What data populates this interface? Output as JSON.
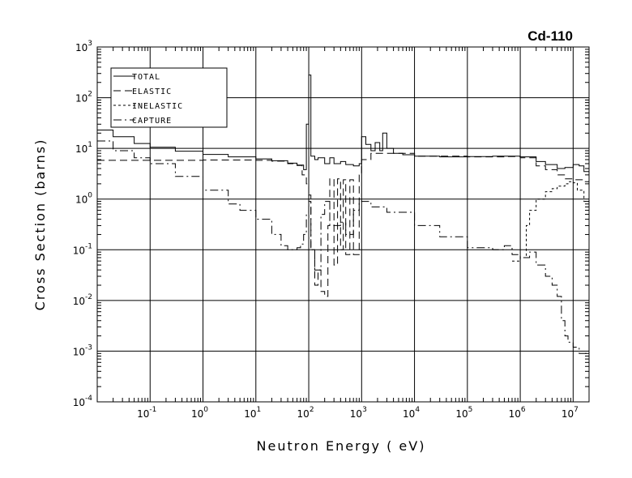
{
  "chart_data": {
    "type": "line",
    "title": "Cd-110",
    "xlabel": "Neutron Energy ( eV)",
    "ylabel": "Cross Section (barns)",
    "xscale": "log",
    "yscale": "log",
    "xlim": [
      0.01,
      20000000
    ],
    "ylim": [
      0.0001,
      1000
    ],
    "grid": true,
    "legend_position": "top-left",
    "x_ticks": [
      {
        "base": "10",
        "exp": "-1",
        "value": 0.1
      },
      {
        "base": "10",
        "exp": "0",
        "value": 1
      },
      {
        "base": "10",
        "exp": "1",
        "value": 10
      },
      {
        "base": "10",
        "exp": "2",
        "value": 100
      },
      {
        "base": "10",
        "exp": "3",
        "value": 1000
      },
      {
        "base": "10",
        "exp": "4",
        "value": 10000
      },
      {
        "base": "10",
        "exp": "5",
        "value": 100000
      },
      {
        "base": "10",
        "exp": "6",
        "value": 1000000
      },
      {
        "base": "10",
        "exp": "7",
        "value": 10000000
      }
    ],
    "y_ticks": [
      {
        "base": "10",
        "exp": "-4",
        "value": 0.0001
      },
      {
        "base": "10",
        "exp": "-3",
        "value": 0.001
      },
      {
        "base": "10",
        "exp": "-2",
        "value": 0.01
      },
      {
        "base": "10",
        "exp": "-1",
        "value": 0.1
      },
      {
        "base": "10",
        "exp": "0",
        "value": 1
      },
      {
        "base": "10",
        "exp": "1",
        "value": 10
      },
      {
        "base": "10",
        "exp": "2",
        "value": 100
      },
      {
        "base": "10",
        "exp": "3",
        "value": 1000
      }
    ],
    "series": [
      {
        "name": "TOTAL",
        "dash": "solid",
        "points": [
          [
            0.01,
            23
          ],
          [
            0.02,
            17
          ],
          [
            0.05,
            12.5
          ],
          [
            0.1,
            10.5
          ],
          [
            0.3,
            8.8
          ],
          [
            1,
            7.6
          ],
          [
            3,
            6.8
          ],
          [
            10,
            6.2
          ],
          [
            20,
            5.7
          ],
          [
            40,
            5.1
          ],
          [
            60,
            4.7
          ],
          [
            80,
            3.8
          ],
          [
            90,
            30
          ],
          [
            100,
            280
          ],
          [
            110,
            7
          ],
          [
            130,
            6
          ],
          [
            150,
            6.5
          ],
          [
            200,
            5
          ],
          [
            250,
            6.5
          ],
          [
            300,
            5
          ],
          [
            400,
            5.5
          ],
          [
            500,
            4.8
          ],
          [
            700,
            4.5
          ],
          [
            900,
            5
          ],
          [
            1000,
            17
          ],
          [
            1200,
            12
          ],
          [
            1500,
            9
          ],
          [
            1800,
            13
          ],
          [
            2200,
            9
          ],
          [
            2500,
            20
          ],
          [
            3000,
            10
          ],
          [
            4000,
            8
          ],
          [
            6000,
            7.5
          ],
          [
            10000,
            7
          ],
          [
            30000,
            6.8
          ],
          [
            100000,
            6.9
          ],
          [
            300000,
            7
          ],
          [
            1000000,
            6.8
          ],
          [
            2000000,
            5.5
          ],
          [
            3000000,
            4.8
          ],
          [
            5000000,
            4
          ],
          [
            7000000,
            4.2
          ],
          [
            10000000,
            4.8
          ],
          [
            13000000,
            4.5
          ],
          [
            16000000,
            3.5
          ],
          [
            20000000,
            2.6
          ]
        ]
      },
      {
        "name": "ELASTIC",
        "dash": "long-dash",
        "points": [
          [
            0.01,
            5.8
          ],
          [
            0.1,
            5.8
          ],
          [
            1,
            5.9
          ],
          [
            5,
            5.9
          ],
          [
            10,
            5.8
          ],
          [
            20,
            5.6
          ],
          [
            40,
            5
          ],
          [
            60,
            4.6
          ],
          [
            75,
            3
          ],
          [
            90,
            2
          ],
          [
            100,
            0.9
          ],
          [
            110,
            0.1
          ],
          [
            130,
            0.02
          ],
          [
            150,
            0.04
          ],
          [
            170,
            0.015
          ],
          [
            180,
            0.015
          ],
          [
            200,
            0.012
          ],
          [
            230,
            0.3
          ],
          [
            250,
            2.5
          ],
          [
            270,
            2.5
          ],
          [
            300,
            0.05
          ],
          [
            350,
            2.5
          ],
          [
            400,
            0.1
          ],
          [
            450,
            2.4
          ],
          [
            500,
            0.08
          ],
          [
            550,
            0.08
          ],
          [
            600,
            2.4
          ],
          [
            700,
            0.08
          ],
          [
            800,
            0.08
          ],
          [
            900,
            3
          ],
          [
            1000,
            6
          ],
          [
            1200,
            6
          ],
          [
            1500,
            8
          ],
          [
            2000,
            8
          ],
          [
            3000,
            8
          ],
          [
            10000,
            7
          ],
          [
            100000,
            6.8
          ],
          [
            500000,
            6.9
          ],
          [
            1000000,
            6.5
          ],
          [
            2000000,
            4.5
          ],
          [
            3000000,
            3.8
          ],
          [
            5000000,
            3
          ],
          [
            7000000,
            2.5
          ],
          [
            10000000,
            2.4
          ],
          [
            13000000,
            2.4
          ],
          [
            16000000,
            2.2
          ],
          [
            20000000,
            1.8
          ]
        ]
      },
      {
        "name": "INELASTIC",
        "dash": "short-dash",
        "points": [
          [
            700000,
            0.06
          ],
          [
            1000000,
            0.07
          ],
          [
            1300000,
            0.3
          ],
          [
            1500000,
            0.6
          ],
          [
            2000000,
            1
          ],
          [
            3000000,
            1.4
          ],
          [
            4000000,
            1.6
          ],
          [
            5000000,
            1.8
          ],
          [
            7000000,
            2
          ],
          [
            8000000,
            2.2
          ],
          [
            10000000,
            2.1
          ],
          [
            12000000,
            1.5
          ],
          [
            16000000,
            0.9
          ],
          [
            20000000,
            0.6
          ]
        ]
      },
      {
        "name": "CAPTURE",
        "dash": "dash-dot",
        "points": [
          [
            0.01,
            14
          ],
          [
            0.02,
            9
          ],
          [
            0.05,
            6.5
          ],
          [
            0.1,
            5
          ],
          [
            0.3,
            2.8
          ],
          [
            1,
            1.5
          ],
          [
            3,
            0.8
          ],
          [
            5,
            0.6
          ],
          [
            10,
            0.4
          ],
          [
            20,
            0.2
          ],
          [
            30,
            0.12
          ],
          [
            40,
            0.1
          ],
          [
            50,
            0.1
          ],
          [
            60,
            0.11
          ],
          [
            70,
            0.13
          ],
          [
            80,
            0.2
          ],
          [
            90,
            0.5
          ],
          [
            100,
            1.2
          ],
          [
            110,
            0.1
          ],
          [
            130,
            0.04
          ],
          [
            170,
            0.5
          ],
          [
            200,
            0.9
          ],
          [
            250,
            0.3
          ],
          [
            300,
            0.3
          ],
          [
            400,
            0.35
          ],
          [
            500,
            0.2
          ],
          [
            700,
            0.6
          ],
          [
            900,
            1
          ],
          [
            1000,
            0.9
          ],
          [
            1500,
            0.7
          ],
          [
            3000,
            0.55
          ],
          [
            10000,
            0.3
          ],
          [
            30000,
            0.18
          ],
          [
            100000,
            0.11
          ],
          [
            300000,
            0.1
          ],
          [
            500000,
            0.12
          ],
          [
            700000,
            0.08
          ],
          [
            1000000,
            0.07
          ],
          [
            1500000,
            0.09
          ],
          [
            2000000,
            0.05
          ],
          [
            3000000,
            0.03
          ],
          [
            4000000,
            0.02
          ],
          [
            5000000,
            0.012
          ],
          [
            6000000,
            0.004
          ],
          [
            7000000,
            0.002
          ],
          [
            8000000,
            0.0015
          ],
          [
            10000000,
            0.0012
          ],
          [
            13000000,
            0.0009
          ],
          [
            20000000,
            0.0011
          ]
        ]
      }
    ]
  }
}
